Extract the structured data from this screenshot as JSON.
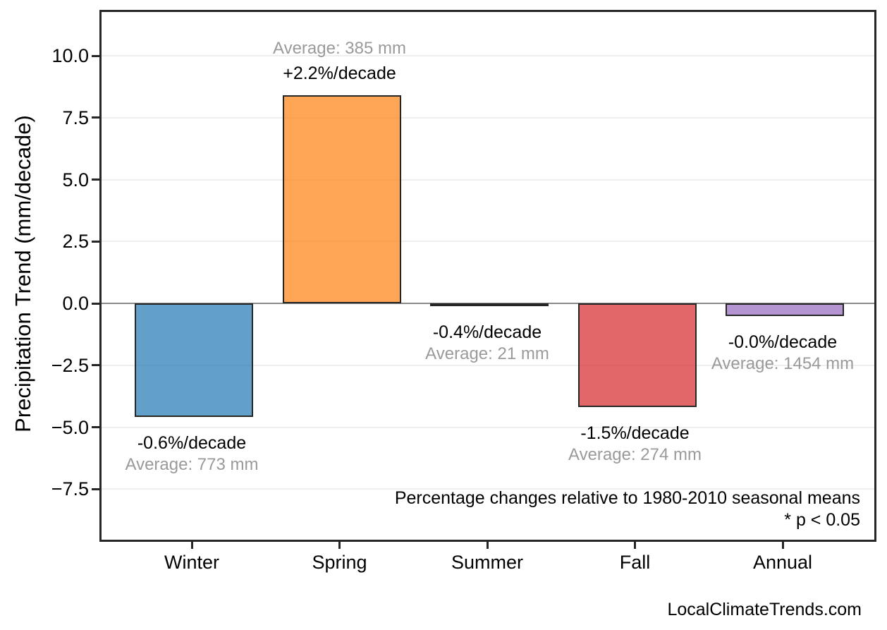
{
  "watermark": "LocalClimateTrends.com",
  "chart_data": {
    "type": "bar",
    "title": "",
    "xlabel": "",
    "ylabel": "Precipitation Trend (mm/decade)",
    "categories": [
      "Winter",
      "Spring",
      "Summer",
      "Fall",
      "Annual"
    ],
    "values": [
      -4.6,
      8.4,
      -0.1,
      -4.2,
      -0.5
    ],
    "ylim": [
      -9.7,
      11.9
    ],
    "yticks": [
      10.0,
      7.5,
      5.0,
      2.5,
      0.0,
      -2.5,
      -5.0,
      -7.5
    ],
    "ytick_labels": [
      "10.0",
      "7.5",
      "5.0",
      "2.5",
      "0.0",
      "−2.5",
      "−5.0",
      "−7.5"
    ],
    "grid": true,
    "legend": false,
    "bars": [
      {
        "category": "Winter",
        "value": -4.6,
        "pct_label": "-0.6%/decade",
        "avg_label": "Average: 773 mm",
        "color": "#1F77B4"
      },
      {
        "category": "Spring",
        "value": 8.4,
        "pct_label": "+2.2%/decade",
        "avg_label": "Average: 385 mm",
        "color": "#FF7F0E"
      },
      {
        "category": "Summer",
        "value": -0.1,
        "pct_label": "-0.4%/decade",
        "avg_label": "Average: 21 mm",
        "color": "#2CA02C"
      },
      {
        "category": "Fall",
        "value": -4.2,
        "pct_label": "-1.5%/decade",
        "avg_label": "Average: 274 mm",
        "color": "#D62728"
      },
      {
        "category": "Annual",
        "value": -0.5,
        "pct_label": "-0.0%/decade",
        "avg_label": "Average: 1454 mm",
        "color": "#9467BD"
      }
    ],
    "annotations": [
      "Percentage changes relative to 1980-2010 seasonal means",
      "* p < 0.05"
    ],
    "colors": {
      "bar_fill_alpha": 0.7,
      "bar_edge": "#262626",
      "axis_border": "#262626",
      "gridline": "#EFEFEF",
      "zero_line": "#8A8A8A",
      "pct_text": "#000000",
      "avg_text": "#9A9A9A"
    }
  }
}
